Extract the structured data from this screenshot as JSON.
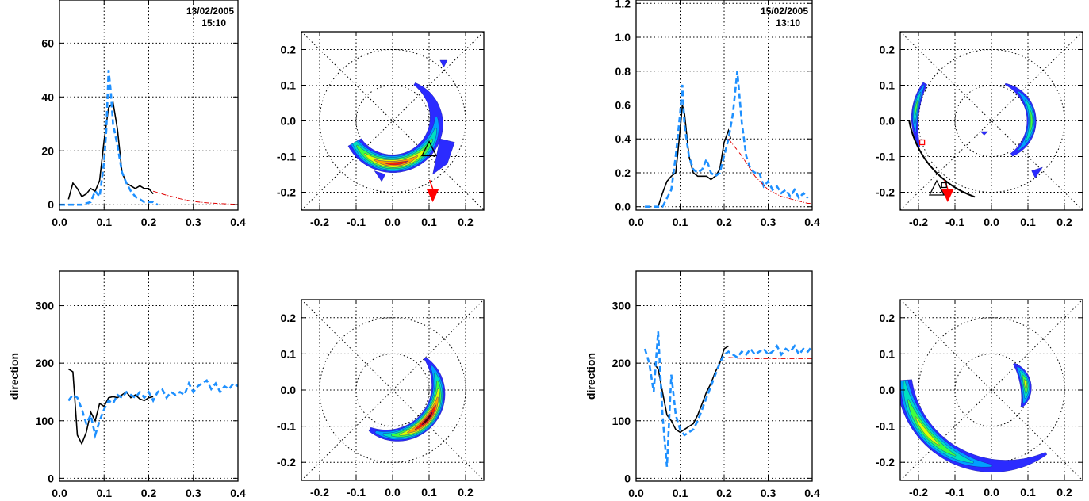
{
  "colors": {
    "solid": "#000000",
    "dashed": "#1e90ff",
    "model": "#e00000",
    "marker": "#ff0000",
    "contour_scale": [
      "#2b2bff",
      "#00a0ff",
      "#00e0c0",
      "#40ff40",
      "#e0ff00",
      "#ffa000",
      "#ff2000",
      "#500000"
    ]
  },
  "chart_data": [
    {
      "type": "line",
      "panel": "spectrum-2005-02-13",
      "date": "13/02/2005",
      "time": "15:10",
      "xlim": [
        0,
        0.4
      ],
      "ylim": [
        -2,
        76
      ],
      "xticks": [
        "0.0",
        "0.1",
        "0.2",
        "0.3",
        "0.4"
      ],
      "yticks": [
        "0",
        "20",
        "40",
        "60"
      ],
      "ylabel": "",
      "grid": true,
      "series": [
        {
          "style": "solid",
          "x": [
            0.02,
            0.03,
            0.04,
            0.05,
            0.06,
            0.07,
            0.08,
            0.09,
            0.1,
            0.11,
            0.12,
            0.13,
            0.14,
            0.15,
            0.16,
            0.17,
            0.18,
            0.19,
            0.2,
            0.21
          ],
          "y": [
            2,
            8,
            6,
            3,
            4,
            6,
            5,
            9,
            24,
            36,
            38,
            28,
            12,
            8,
            7,
            6,
            7,
            6,
            6,
            4
          ]
        },
        {
          "style": "dashed",
          "x": [
            0.0,
            0.03,
            0.05,
            0.07,
            0.08,
            0.09,
            0.1,
            0.105,
            0.11,
            0.115,
            0.12,
            0.13,
            0.14,
            0.15,
            0.16,
            0.17,
            0.18,
            0.19,
            0.2,
            0.21,
            0.22
          ],
          "y": [
            0,
            0,
            0,
            1,
            5,
            3,
            16,
            28,
            50,
            42,
            30,
            22,
            12,
            8,
            5,
            3,
            2,
            1,
            1,
            1,
            0
          ]
        },
        {
          "style": "dashdot",
          "x": [
            0.21,
            0.24,
            0.27,
            0.3,
            0.33,
            0.36,
            0.39,
            0.4
          ],
          "y": [
            5,
            3.5,
            2.2,
            1.2,
            0.7,
            0.4,
            0.2,
            0.1
          ]
        }
      ]
    },
    {
      "type": "contour",
      "panel": "directional-spectrum-2005-02-13-top",
      "xlim": [
        -0.25,
        0.25
      ],
      "ylim": [
        -0.25,
        0.25
      ],
      "xticks": [
        "-0.2",
        "-0.1",
        "0.0",
        "0.1",
        "0.2"
      ],
      "yticks": [
        "-0.2",
        "-0.1",
        "0.0",
        "0.1",
        "0.2"
      ],
      "circles": [
        0.1,
        0.2
      ],
      "grid": true,
      "blobs": [
        {
          "kind": "crescent",
          "cx": 0.0,
          "cy": 0.0,
          "r": 0.12,
          "thick": 0.05,
          "a1": -150,
          "a2": 60,
          "peak": -85,
          "levels": 7
        },
        {
          "kind": "patch",
          "points": [
            [
              0.13,
              -0.05
            ],
            [
              0.17,
              -0.06
            ],
            [
              0.15,
              -0.12
            ],
            [
              0.11,
              -0.15
            ],
            [
              0.12,
              -0.1
            ]
          ],
          "levels": 1
        },
        {
          "kind": "patch",
          "points": [
            [
              0.13,
              0.17
            ],
            [
              0.15,
              0.17
            ],
            [
              0.14,
              0.15
            ]
          ],
          "levels": 1
        },
        {
          "kind": "patch",
          "points": [
            [
              -0.05,
              -0.14
            ],
            [
              -0.03,
              -0.17
            ],
            [
              -0.02,
              -0.15
            ]
          ],
          "levels": 1
        }
      ],
      "markers": [
        {
          "type": "triangle-down",
          "x": 0.11,
          "y": -0.21,
          "filled": true
        },
        {
          "type": "triangle",
          "x": 0.1,
          "y": -0.08,
          "filled": false
        }
      ]
    },
    {
      "type": "line",
      "panel": "spectrum-2005-02-15",
      "date": "15/02/2005",
      "time": "13:10",
      "xlim": [
        0,
        0.4
      ],
      "ylim": [
        -0.02,
        1.22
      ],
      "xticks": [
        "0.0",
        "0.1",
        "0.2",
        "0.3",
        "0.4"
      ],
      "yticks": [
        "0.0",
        "0.2",
        "0.4",
        "0.6",
        "0.8",
        "1.0",
        "1.2"
      ],
      "ylabel": "",
      "grid": true,
      "series": [
        {
          "style": "solid",
          "x": [
            0.05,
            0.06,
            0.07,
            0.08,
            0.09,
            0.1,
            0.105,
            0.11,
            0.12,
            0.13,
            0.14,
            0.15,
            0.16,
            0.17,
            0.18,
            0.19,
            0.2,
            0.21,
            0.215
          ],
          "y": [
            0.0,
            0.08,
            0.15,
            0.18,
            0.2,
            0.45,
            0.6,
            0.55,
            0.3,
            0.2,
            0.18,
            0.18,
            0.18,
            0.16,
            0.18,
            0.22,
            0.38,
            0.45,
            0.4
          ]
        },
        {
          "style": "dashed",
          "x": [
            0.02,
            0.06,
            0.08,
            0.09,
            0.1,
            0.105,
            0.11,
            0.12,
            0.13,
            0.14,
            0.15,
            0.16,
            0.17,
            0.18,
            0.19,
            0.2,
            0.21,
            0.22,
            0.23,
            0.24,
            0.25,
            0.26,
            0.27,
            0.28,
            0.29,
            0.3,
            0.31,
            0.32,
            0.33,
            0.34,
            0.35,
            0.36,
            0.37,
            0.38,
            0.39
          ],
          "y": [
            0.0,
            0.0,
            0.1,
            0.3,
            0.55,
            0.72,
            0.48,
            0.3,
            0.22,
            0.2,
            0.22,
            0.28,
            0.2,
            0.18,
            0.2,
            0.3,
            0.4,
            0.55,
            0.8,
            0.5,
            0.3,
            0.22,
            0.2,
            0.2,
            0.12,
            0.15,
            0.1,
            0.12,
            0.08,
            0.1,
            0.06,
            0.1,
            0.05,
            0.08,
            0.05
          ]
        },
        {
          "style": "dashdot",
          "x": [
            0.21,
            0.24,
            0.27,
            0.3,
            0.33,
            0.36,
            0.39,
            0.4
          ],
          "y": [
            0.4,
            0.3,
            0.18,
            0.1,
            0.06,
            0.04,
            0.02,
            0.02
          ]
        }
      ]
    },
    {
      "type": "contour",
      "panel": "directional-spectrum-2005-02-15-top",
      "xlim": [
        -0.25,
        0.25
      ],
      "ylim": [
        -0.25,
        0.25
      ],
      "xticks": [
        "-0.2",
        "-0.1",
        "0.0",
        "0.1",
        "0.2"
      ],
      "yticks": [
        "-0.2",
        "-0.1",
        "0.0",
        "0.1",
        "0.2"
      ],
      "circles": [
        0.1,
        0.2
      ],
      "grid": true,
      "blobs": [
        {
          "kind": "crescent",
          "cx": 0.0,
          "cy": 0.0,
          "r": 0.11,
          "thick": 0.025,
          "a1": -60,
          "a2": 70,
          "peak": 0,
          "levels": 4
        },
        {
          "kind": "crescent",
          "cx": 0.0,
          "cy": 0.0,
          "r": 0.21,
          "thick": 0.02,
          "a1": 150,
          "a2": 200,
          "peak": 170,
          "levels": 4
        },
        {
          "kind": "patch",
          "points": [
            [
              0.11,
              -0.14
            ],
            [
              0.14,
              -0.13
            ],
            [
              0.12,
              -0.16
            ]
          ],
          "levels": 1
        },
        {
          "kind": "patch",
          "points": [
            [
              -0.03,
              -0.03
            ],
            [
              -0.01,
              -0.03
            ],
            [
              -0.02,
              -0.04
            ]
          ],
          "levels": 1
        }
      ],
      "markers": [
        {
          "type": "triangle-down",
          "x": -0.12,
          "y": -0.21,
          "filled": true
        },
        {
          "type": "triangle",
          "x": -0.15,
          "y": -0.19,
          "filled": false
        },
        {
          "type": "square",
          "x": -0.13,
          "y": -0.18,
          "filled": false
        },
        {
          "type": "square-red",
          "x": -0.19,
          "y": -0.06,
          "filled": false
        }
      ],
      "arc": {
        "cx": 0.05,
        "cy": 0.05,
        "r": 0.28,
        "a1": 190,
        "a2": 250
      }
    },
    {
      "type": "line",
      "panel": "direction-2005-02-13",
      "xlim": [
        0,
        0.4
      ],
      "ylim": [
        -5,
        360
      ],
      "xticks": [
        "0.0",
        "0.1",
        "0.2",
        "0.3",
        "0.4"
      ],
      "yticks": [
        "0",
        "100",
        "200",
        "300"
      ],
      "ylabel": "direction",
      "grid": true,
      "series": [
        {
          "style": "solid",
          "x": [
            0.02,
            0.03,
            0.035,
            0.04,
            0.05,
            0.06,
            0.07,
            0.08,
            0.09,
            0.1,
            0.11,
            0.12,
            0.13,
            0.14,
            0.15,
            0.16,
            0.17,
            0.18,
            0.19,
            0.2,
            0.21
          ],
          "y": [
            190,
            185,
            130,
            75,
            60,
            80,
            115,
            100,
            130,
            125,
            140,
            142,
            140,
            145,
            150,
            140,
            145,
            138,
            135,
            140,
            142
          ]
        },
        {
          "style": "dashed",
          "x": [
            0.02,
            0.03,
            0.04,
            0.05,
            0.06,
            0.07,
            0.08,
            0.09,
            0.1,
            0.11,
            0.12,
            0.13,
            0.14,
            0.15,
            0.16,
            0.17,
            0.18,
            0.19,
            0.2,
            0.21,
            0.22,
            0.23,
            0.24,
            0.25,
            0.26,
            0.27,
            0.28,
            0.29,
            0.3,
            0.31,
            0.32,
            0.33,
            0.34,
            0.35,
            0.36,
            0.37,
            0.38,
            0.39,
            0.4
          ],
          "y": [
            135,
            145,
            140,
            120,
            95,
            110,
            75,
            100,
            120,
            135,
            130,
            145,
            140,
            150,
            145,
            140,
            150,
            140,
            150,
            135,
            150,
            155,
            140,
            150,
            145,
            150,
            145,
            165,
            150,
            160,
            165,
            170,
            155,
            165,
            150,
            160,
            155,
            165,
            160
          ]
        },
        {
          "style": "dashdot",
          "x": [
            0.3,
            0.33,
            0.36,
            0.39,
            0.4
          ],
          "y": [
            150,
            150,
            150,
            150,
            150
          ]
        }
      ]
    },
    {
      "type": "contour",
      "panel": "directional-spectrum-2005-02-13-bottom",
      "xlim": [
        -0.25,
        0.25
      ],
      "ylim": [
        -0.25,
        0.25
      ],
      "xticks": [
        "-0.2",
        "-0.1",
        "0.0",
        "0.1",
        "0.2"
      ],
      "yticks": [
        "-0.2",
        "-0.1",
        "0.0",
        "0.1",
        "0.2"
      ],
      "circles": [
        0.1,
        0.2
      ],
      "grid": true,
      "blobs": [
        {
          "kind": "crescent",
          "cx": 0.0,
          "cy": 0.0,
          "r": 0.125,
          "thick": 0.045,
          "a1": -120,
          "a2": 45,
          "peak": -40,
          "levels": 8
        }
      ],
      "markers": []
    },
    {
      "type": "line",
      "panel": "direction-2005-02-15",
      "xlim": [
        0,
        0.4
      ],
      "ylim": [
        -5,
        360
      ],
      "xticks": [
        "0.0",
        "0.1",
        "0.2",
        "0.3",
        "0.4"
      ],
      "yticks": [
        "0",
        "100",
        "200",
        "300"
      ],
      "ylabel": "direction",
      "grid": true,
      "series": [
        {
          "style": "solid",
          "x": [
            0.04,
            0.05,
            0.06,
            0.07,
            0.08,
            0.09,
            0.1,
            0.11,
            0.12,
            0.13,
            0.14,
            0.15,
            0.16,
            0.17,
            0.18,
            0.19,
            0.2,
            0.21
          ],
          "y": [
            200,
            190,
            150,
            110,
            100,
            85,
            80,
            85,
            90,
            95,
            110,
            130,
            150,
            165,
            185,
            200,
            225,
            230
          ]
        },
        {
          "style": "dashed",
          "x": [
            0.02,
            0.03,
            0.04,
            0.05,
            0.06,
            0.07,
            0.08,
            0.09,
            0.1,
            0.11,
            0.12,
            0.13,
            0.14,
            0.15,
            0.16,
            0.17,
            0.18,
            0.19,
            0.2,
            0.21,
            0.22,
            0.23,
            0.24,
            0.25,
            0.26,
            0.27,
            0.28,
            0.29,
            0.3,
            0.31,
            0.32,
            0.33,
            0.34,
            0.35,
            0.36,
            0.37,
            0.38,
            0.39,
            0.4
          ],
          "y": [
            225,
            200,
            150,
            255,
            110,
            20,
            180,
            110,
            85,
            75,
            80,
            85,
            100,
            120,
            140,
            160,
            180,
            200,
            215,
            220,
            215,
            210,
            220,
            215,
            225,
            215,
            220,
            225,
            215,
            220,
            230,
            215,
            225,
            220,
            230,
            215,
            225,
            220,
            230
          ]
        },
        {
          "style": "dashdot",
          "x": [
            0.21,
            0.25,
            0.3,
            0.35,
            0.4
          ],
          "y": [
            210,
            208,
            208,
            208,
            208
          ]
        }
      ]
    },
    {
      "type": "contour",
      "panel": "directional-spectrum-2005-02-15-bottom",
      "xlim": [
        -0.25,
        0.25
      ],
      "ylim": [
        -0.25,
        0.25
      ],
      "xticks": [
        "-0.2",
        "-0.1",
        "0.0",
        "0.1",
        "0.2"
      ],
      "yticks": [
        "-0.2",
        "-0.1",
        "0.0",
        "0.1",
        "0.2"
      ],
      "circles": [
        0.1,
        0.2
      ],
      "grid": true,
      "blobs": [
        {
          "kind": "crescent",
          "cx": 0.0,
          "cy": 0.0,
          "r": 0.095,
          "thick": 0.03,
          "a1": -30,
          "a2": 50,
          "peak": 10,
          "levels": 5
        },
        {
          "kind": "crescent",
          "cx": 0.02,
          "cy": 0.05,
          "r": 0.26,
          "thick": 0.05,
          "a1": 185,
          "a2": 300,
          "peak": 220,
          "levels": 5
        }
      ],
      "markers": []
    }
  ]
}
